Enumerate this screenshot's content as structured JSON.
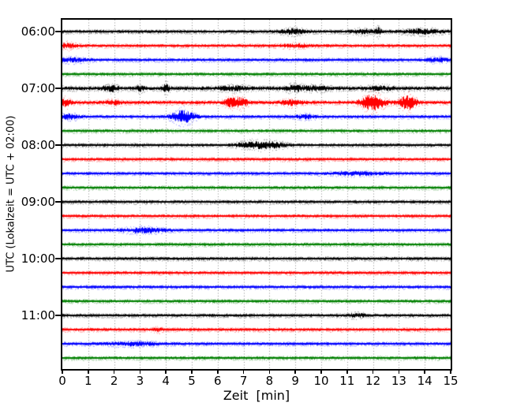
{
  "figure": {
    "background": "#ffffff",
    "x_axis_label": "Zeit  [min]",
    "y_axis_label": "UTC (Lokalzeit = UTC + 02:00)",
    "x_tick_labels": [
      "0",
      "1",
      "2",
      "3",
      "4",
      "5",
      "6",
      "7",
      "8",
      "9",
      "10",
      "11",
      "12",
      "13",
      "14",
      "15"
    ],
    "y_tick_labels": [
      "06:00",
      "07:00",
      "08:00",
      "09:00",
      "10:00",
      "11:00"
    ],
    "grid_color": "#888888",
    "axis_color": "#000000"
  },
  "chart_data": {
    "type": "line",
    "subtype": "helicorder-seismogram",
    "title": "",
    "xlabel": "Zeit  [min]",
    "ylabel": "UTC (Lokalzeit = UTC + 02:00)",
    "xlim": [
      0,
      15
    ],
    "minutes_per_row": 15,
    "grid": "vertical-dotted-every-minute",
    "legend_position": "none",
    "event_format": "[center_minute, half_width_minutes, amplitude_px]",
    "row_colors_cycle": [
      "#000000",
      "#ff0000",
      "#0000ff",
      "#008000"
    ],
    "rows": [
      {
        "start_utc": "06:00",
        "color": "#000000",
        "noise": 1.5,
        "events": [
          [
            8.9,
            0.45,
            2.2
          ],
          [
            11.6,
            0.5,
            1.6
          ],
          [
            12.2,
            0.1,
            3.0
          ],
          [
            13.9,
            0.75,
            2.0
          ]
        ]
      },
      {
        "start_utc": "06:15",
        "color": "#ff0000",
        "noise": 1.5,
        "events": [
          [
            0.2,
            0.3,
            2.0
          ],
          [
            9.0,
            0.5,
            1.2
          ]
        ]
      },
      {
        "start_utc": "06:30",
        "color": "#0000ff",
        "noise": 1.5,
        "events": [
          [
            0.4,
            0.5,
            1.5
          ],
          [
            14.5,
            0.4,
            1.5
          ]
        ]
      },
      {
        "start_utc": "06:45",
        "color": "#008000",
        "noise": 1.5,
        "events": []
      },
      {
        "start_utc": "07:00",
        "color": "#000000",
        "noise": 1.9,
        "events": [
          [
            1.85,
            0.25,
            2.8
          ],
          [
            3.0,
            0.15,
            2.0
          ],
          [
            4.0,
            0.12,
            3.6
          ],
          [
            6.6,
            0.5,
            1.5
          ],
          [
            8.95,
            0.3,
            2.2
          ],
          [
            9.7,
            0.6,
            1.4
          ],
          [
            12.3,
            0.5,
            1.3
          ]
        ]
      },
      {
        "start_utc": "07:15",
        "color": "#ff0000",
        "noise": 1.7,
        "events": [
          [
            0.12,
            0.2,
            3.2
          ],
          [
            2.0,
            0.3,
            1.5
          ],
          [
            6.55,
            0.3,
            4.2
          ],
          [
            6.95,
            0.2,
            3.2
          ],
          [
            8.8,
            0.4,
            2.0
          ],
          [
            11.97,
            0.45,
            7.2
          ],
          [
            13.35,
            0.3,
            6.8
          ]
        ]
      },
      {
        "start_utc": "07:30",
        "color": "#0000ff",
        "noise": 1.5,
        "events": [
          [
            0.2,
            0.35,
            2.2
          ],
          [
            4.65,
            0.42,
            5.8
          ],
          [
            9.4,
            0.35,
            1.6
          ]
        ]
      },
      {
        "start_utc": "07:45",
        "color": "#008000",
        "noise": 1.5,
        "events": []
      },
      {
        "start_utc": "08:00",
        "color": "#000000",
        "noise": 1.5,
        "events": [
          [
            7.3,
            0.55,
            2.8
          ],
          [
            8.1,
            0.5,
            2.4
          ]
        ]
      },
      {
        "start_utc": "08:15",
        "color": "#ff0000",
        "noise": 1.5,
        "events": []
      },
      {
        "start_utc": "08:30",
        "color": "#0000ff",
        "noise": 1.5,
        "events": [
          [
            11.3,
            0.9,
            1.2
          ]
        ]
      },
      {
        "start_utc": "08:45",
        "color": "#008000",
        "noise": 1.5,
        "events": []
      },
      {
        "start_utc": "09:00",
        "color": "#000000",
        "noise": 1.5,
        "events": []
      },
      {
        "start_utc": "09:15",
        "color": "#ff0000",
        "noise": 1.5,
        "events": []
      },
      {
        "start_utc": "09:30",
        "color": "#0000ff",
        "noise": 1.5,
        "events": [
          [
            3.1,
            0.75,
            2.0
          ]
        ]
      },
      {
        "start_utc": "09:45",
        "color": "#008000",
        "noise": 1.5,
        "events": []
      },
      {
        "start_utc": "10:00",
        "color": "#000000",
        "noise": 1.5,
        "events": []
      },
      {
        "start_utc": "10:15",
        "color": "#ff0000",
        "noise": 1.5,
        "events": []
      },
      {
        "start_utc": "10:30",
        "color": "#0000ff",
        "noise": 1.5,
        "events": []
      },
      {
        "start_utc": "10:45",
        "color": "#008000",
        "noise": 1.5,
        "events": []
      },
      {
        "start_utc": "11:00",
        "color": "#000000",
        "noise": 1.5,
        "events": [
          [
            11.4,
            0.4,
            1.2
          ]
        ]
      },
      {
        "start_utc": "11:15",
        "color": "#ff0000",
        "noise": 1.5,
        "events": [
          [
            3.7,
            0.15,
            1.5
          ]
        ]
      },
      {
        "start_utc": "11:30",
        "color": "#0000ff",
        "noise": 1.5,
        "events": [
          [
            2.8,
            1.0,
            1.3
          ]
        ]
      },
      {
        "start_utc": "11:45",
        "color": "#008000",
        "noise": 1.5,
        "events": []
      }
    ]
  }
}
